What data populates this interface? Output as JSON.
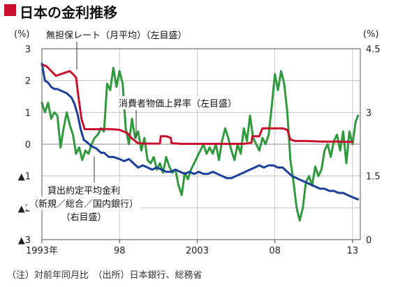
{
  "title": "日本の金利推移",
  "note": "（注）対前年同月比　（出所）日本銀行、総務省",
  "chart_data": {
    "type": "line",
    "left_axis": {
      "unit": "(%)",
      "ylim": [
        -3,
        3
      ],
      "ticks": [
        {
          "value": 3,
          "label": "3"
        },
        {
          "value": 2,
          "label": "2"
        },
        {
          "value": 1,
          "label": "1"
        },
        {
          "value": 0,
          "label": "0"
        },
        {
          "value": -1,
          "label": "▲1"
        },
        {
          "value": -2,
          "label": "▲2"
        },
        {
          "value": -3,
          "label": "▲3"
        }
      ]
    },
    "right_axis": {
      "unit": "(%)",
      "ylim": [
        0,
        4.5
      ],
      "ticks": [
        {
          "value": 4.5,
          "label": "4.5"
        },
        {
          "value": 3,
          "label": "3"
        },
        {
          "value": 1.5,
          "label": "1.5"
        },
        {
          "value": 0,
          "label": "0"
        }
      ]
    },
    "x_axis": {
      "xlim": [
        1993,
        2013.5
      ],
      "ticks": [
        {
          "value": 1993,
          "label": "1993年"
        },
        {
          "value": 1998,
          "label": "98"
        },
        {
          "value": 2003,
          "label": "2003"
        },
        {
          "value": 2008,
          "label": "08"
        },
        {
          "value": 2013,
          "label": "13"
        }
      ]
    },
    "grid": true,
    "series": [
      {
        "name": "無担保レート（月平均）（左目盛）",
        "axis": "left",
        "color": "#c8102e",
        "points": [
          [
            1993.0,
            2.5
          ],
          [
            1993.3,
            2.45
          ],
          [
            1993.6,
            2.3
          ],
          [
            1993.9,
            2.15
          ],
          [
            1994.2,
            2.2
          ],
          [
            1994.5,
            2.25
          ],
          [
            1994.8,
            2.3
          ],
          [
            1995.0,
            2.2
          ],
          [
            1995.2,
            2.1
          ],
          [
            1995.35,
            1.5
          ],
          [
            1995.55,
            0.8
          ],
          [
            1995.75,
            0.47
          ],
          [
            1996.0,
            0.47
          ],
          [
            1996.5,
            0.47
          ],
          [
            1997.0,
            0.48
          ],
          [
            1997.5,
            0.47
          ],
          [
            1998.0,
            0.45
          ],
          [
            1998.5,
            0.35
          ],
          [
            1998.75,
            0.2
          ],
          [
            1999.0,
            0.1
          ],
          [
            1999.2,
            0.03
          ],
          [
            1999.6,
            0.02
          ],
          [
            2000.0,
            0.02
          ],
          [
            2000.6,
            0.02
          ],
          [
            2000.65,
            0.25
          ],
          [
            2001.0,
            0.25
          ],
          [
            2001.3,
            0.2
          ],
          [
            2001.35,
            0.03
          ],
          [
            2002.0,
            0.01
          ],
          [
            2004.0,
            0.01
          ],
          [
            2006.0,
            0.01
          ],
          [
            2006.5,
            0.05
          ],
          [
            2006.55,
            0.25
          ],
          [
            2007.0,
            0.25
          ],
          [
            2007.2,
            0.5
          ],
          [
            2007.7,
            0.5
          ],
          [
            2008.0,
            0.5
          ],
          [
            2008.5,
            0.5
          ],
          [
            2008.8,
            0.45
          ],
          [
            2009.0,
            0.15
          ],
          [
            2009.3,
            0.1
          ],
          [
            2010.0,
            0.1
          ],
          [
            2011.0,
            0.08
          ],
          [
            2012.0,
            0.08
          ],
          [
            2013.0,
            0.07
          ]
        ]
      },
      {
        "name": "消費者物価上昇率（左目盛）",
        "axis": "left",
        "color": "#2e9a3c",
        "points": [
          [
            1993.0,
            1.3
          ],
          [
            1993.2,
            1.0
          ],
          [
            1993.4,
            1.3
          ],
          [
            1993.6,
            0.8
          ],
          [
            1993.8,
            1.0
          ],
          [
            1994.0,
            0.9
          ],
          [
            1994.2,
            -0.1
          ],
          [
            1994.4,
            0.5
          ],
          [
            1994.6,
            1.0
          ],
          [
            1994.8,
            0.6
          ],
          [
            1995.0,
            0.3
          ],
          [
            1995.2,
            -0.3
          ],
          [
            1995.4,
            -0.1
          ],
          [
            1995.6,
            -0.5
          ],
          [
            1995.8,
            -0.2
          ],
          [
            1996.0,
            -0.3
          ],
          [
            1996.2,
            0.0
          ],
          [
            1996.4,
            0.2
          ],
          [
            1996.6,
            0.3
          ],
          [
            1996.8,
            0.5
          ],
          [
            1997.0,
            0.4
          ],
          [
            1997.2,
            1.9
          ],
          [
            1997.4,
            1.7
          ],
          [
            1997.6,
            2.4
          ],
          [
            1997.8,
            1.8
          ],
          [
            1998.0,
            2.3
          ],
          [
            1998.2,
            1.9
          ],
          [
            1998.4,
            0.5
          ],
          [
            1998.6,
            0.0
          ],
          [
            1998.8,
            0.8
          ],
          [
            1999.0,
            0.2
          ],
          [
            1999.2,
            0.4
          ],
          [
            1999.4,
            -0.2
          ],
          [
            1999.6,
            0.2
          ],
          [
            1999.8,
            -0.5
          ],
          [
            2000.0,
            -0.6
          ],
          [
            2000.2,
            -0.4
          ],
          [
            2000.4,
            -0.8
          ],
          [
            2000.6,
            -0.6
          ],
          [
            2000.8,
            -0.9
          ],
          [
            2001.0,
            -0.4
          ],
          [
            2001.2,
            -0.7
          ],
          [
            2001.4,
            -0.9
          ],
          [
            2001.6,
            -0.8
          ],
          [
            2001.8,
            -1.3
          ],
          [
            2002.0,
            -1.6
          ],
          [
            2002.2,
            -0.9
          ],
          [
            2002.4,
            -1.1
          ],
          [
            2002.6,
            -0.8
          ],
          [
            2002.8,
            -0.6
          ],
          [
            2003.0,
            -0.4
          ],
          [
            2003.2,
            -0.2
          ],
          [
            2003.4,
            0.0
          ],
          [
            2003.6,
            -0.3
          ],
          [
            2003.8,
            -0.1
          ],
          [
            2004.0,
            -0.3
          ],
          [
            2004.2,
            0.0
          ],
          [
            2004.4,
            -0.5
          ],
          [
            2004.6,
            0.1
          ],
          [
            2004.8,
            0.5
          ],
          [
            2005.0,
            0.2
          ],
          [
            2005.2,
            -0.2
          ],
          [
            2005.4,
            -0.5
          ],
          [
            2005.6,
            0.0
          ],
          [
            2005.8,
            -0.3
          ],
          [
            2006.0,
            0.5
          ],
          [
            2006.2,
            0.1
          ],
          [
            2006.4,
            0.9
          ],
          [
            2006.6,
            0.2
          ],
          [
            2006.8,
            0.0
          ],
          [
            2007.0,
            -0.2
          ],
          [
            2007.2,
            0.2
          ],
          [
            2007.4,
            0.0
          ],
          [
            2007.6,
            0.3
          ],
          [
            2007.8,
            1.2
          ],
          [
            2008.0,
            2.2
          ],
          [
            2008.2,
            1.7
          ],
          [
            2008.4,
            2.3
          ],
          [
            2008.6,
            1.9
          ],
          [
            2008.8,
            1.0
          ],
          [
            2009.0,
            -0.5
          ],
          [
            2009.2,
            -1.2
          ],
          [
            2009.4,
            -2.0
          ],
          [
            2009.6,
            -2.4
          ],
          [
            2009.8,
            -2.0
          ],
          [
            2010.0,
            -1.2
          ],
          [
            2010.2,
            -1.0
          ],
          [
            2010.4,
            -1.3
          ],
          [
            2010.6,
            -0.7
          ],
          [
            2010.8,
            -1.0
          ],
          [
            2011.0,
            -0.8
          ],
          [
            2011.2,
            -0.2
          ],
          [
            2011.4,
            0.0
          ],
          [
            2011.6,
            -0.4
          ],
          [
            2011.8,
            0.1
          ],
          [
            2012.0,
            0.3
          ],
          [
            2012.2,
            -0.2
          ],
          [
            2012.4,
            0.4
          ],
          [
            2012.6,
            -0.6
          ],
          [
            2012.8,
            0.4
          ],
          [
            2013.0,
            0.0
          ],
          [
            2013.2,
            0.7
          ],
          [
            2013.35,
            0.9
          ]
        ]
      },
      {
        "name": "貸出約定平均金利（新規／総合／国内銀行）（右目盛）",
        "axis": "right",
        "color": "#1b3f9a",
        "points": [
          [
            1993.0,
            4.15
          ],
          [
            1993.2,
            3.75
          ],
          [
            1993.4,
            3.7
          ],
          [
            1993.6,
            3.6
          ],
          [
            1993.8,
            3.55
          ],
          [
            1994.0,
            3.55
          ],
          [
            1994.3,
            3.5
          ],
          [
            1994.6,
            3.45
          ],
          [
            1994.9,
            3.35
          ],
          [
            1995.1,
            3.2
          ],
          [
            1995.3,
            2.95
          ],
          [
            1995.5,
            2.6
          ],
          [
            1995.7,
            2.35
          ],
          [
            1995.9,
            2.3
          ],
          [
            1996.2,
            2.2
          ],
          [
            1996.5,
            2.15
          ],
          [
            1996.8,
            2.05
          ],
          [
            1997.0,
            2.05
          ],
          [
            1997.3,
            1.95
          ],
          [
            1997.6,
            1.95
          ],
          [
            1998.0,
            1.9
          ],
          [
            1998.3,
            1.85
          ],
          [
            1998.6,
            1.9
          ],
          [
            1998.9,
            1.8
          ],
          [
            1999.2,
            1.7
          ],
          [
            1999.5,
            1.75
          ],
          [
            1999.8,
            1.7
          ],
          [
            2000.1,
            1.65
          ],
          [
            2000.4,
            1.7
          ],
          [
            2000.7,
            1.65
          ],
          [
            2001.0,
            1.6
          ],
          [
            2001.3,
            1.6
          ],
          [
            2001.6,
            1.65
          ],
          [
            2001.9,
            1.6
          ],
          [
            2002.2,
            1.55
          ],
          [
            2002.5,
            1.6
          ],
          [
            2002.8,
            1.55
          ],
          [
            2003.1,
            1.6
          ],
          [
            2003.4,
            1.55
          ],
          [
            2003.7,
            1.55
          ],
          [
            2004.0,
            1.6
          ],
          [
            2004.3,
            1.55
          ],
          [
            2004.6,
            1.5
          ],
          [
            2004.9,
            1.45
          ],
          [
            2005.2,
            1.45
          ],
          [
            2005.5,
            1.5
          ],
          [
            2005.8,
            1.55
          ],
          [
            2006.1,
            1.6
          ],
          [
            2006.4,
            1.65
          ],
          [
            2006.7,
            1.7
          ],
          [
            2007.0,
            1.75
          ],
          [
            2007.3,
            1.7
          ],
          [
            2007.6,
            1.75
          ],
          [
            2007.9,
            1.75
          ],
          [
            2008.2,
            1.7
          ],
          [
            2008.5,
            1.7
          ],
          [
            2008.8,
            1.6
          ],
          [
            2009.1,
            1.5
          ],
          [
            2009.4,
            1.45
          ],
          [
            2009.7,
            1.4
          ],
          [
            2010.0,
            1.35
          ],
          [
            2010.3,
            1.3
          ],
          [
            2010.6,
            1.25
          ],
          [
            2010.9,
            1.2
          ],
          [
            2011.2,
            1.2
          ],
          [
            2011.5,
            1.15
          ],
          [
            2011.8,
            1.15
          ],
          [
            2012.1,
            1.1
          ],
          [
            2012.4,
            1.1
          ],
          [
            2012.7,
            1.05
          ],
          [
            2013.0,
            1.0
          ],
          [
            2013.35,
            0.95
          ]
        ]
      }
    ],
    "annotations": [
      {
        "text_lines": [
          "無担保レート（月平均）（左目盛）"
        ]
      },
      {
        "text_lines": [
          "消費者物価上昇率（左目盛）"
        ]
      },
      {
        "text_lines": [
          "貸出約定平均金利",
          "（新規／総合／国内銀行）",
          "（右目盛）"
        ]
      }
    ]
  }
}
